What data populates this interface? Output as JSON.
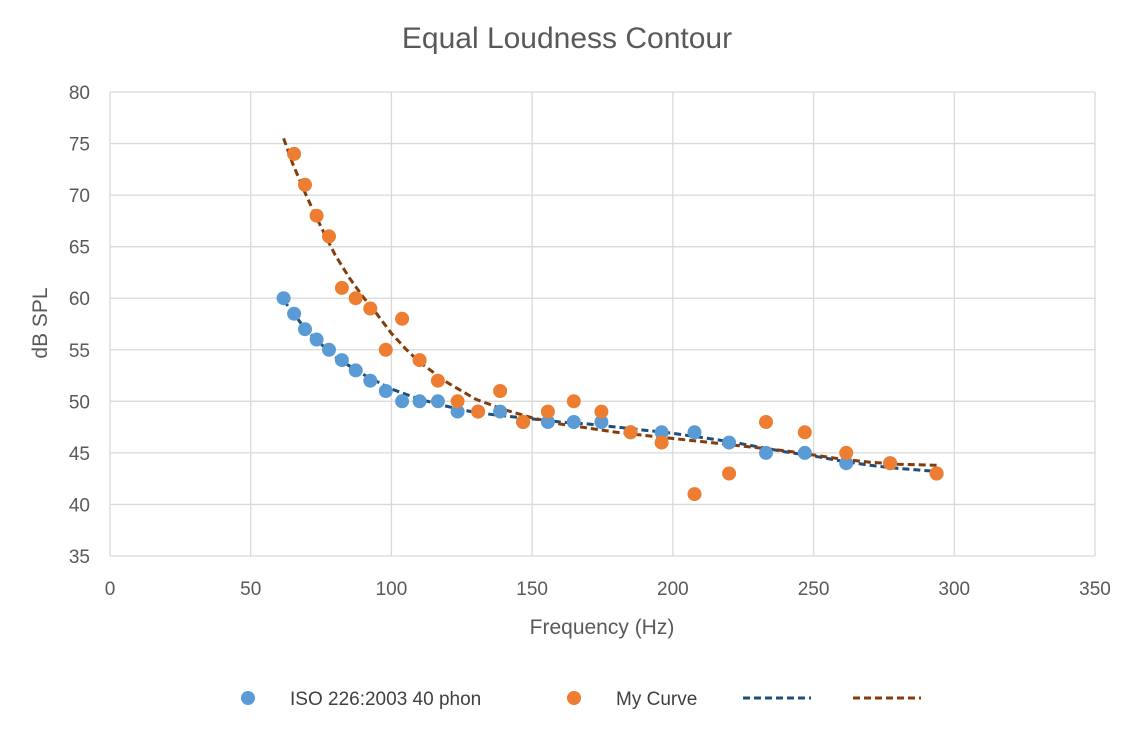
{
  "chart_data": {
    "type": "scatter",
    "title": "Equal Loudness Contour",
    "xlabel": "Frequency (Hz)",
    "ylabel": "dB SPL",
    "xlim": [
      0,
      350
    ],
    "ylim": [
      35,
      80
    ],
    "xticks": [
      0,
      50,
      100,
      150,
      200,
      250,
      300,
      350
    ],
    "yticks": [
      35,
      40,
      45,
      50,
      55,
      60,
      65,
      70,
      75,
      80
    ],
    "grid": true,
    "legend_position": "bottom",
    "series": [
      {
        "name": "ISO 226:2003 40 phon",
        "kind": "scatter",
        "color": "#5b9bd5",
        "x": [
          61.7,
          65.4,
          69.3,
          73.4,
          77.8,
          82.4,
          87.3,
          92.5,
          98.0,
          103.8,
          110.0,
          116.5,
          123.5,
          130.8,
          138.6,
          146.8,
          155.6,
          164.8,
          174.6,
          185.0,
          196.0,
          207.7,
          220.0,
          233.1,
          246.9,
          261.6,
          277.2,
          293.7
        ],
        "y": [
          60,
          58.5,
          57,
          56,
          55,
          54,
          53,
          52,
          51,
          50,
          50,
          50,
          49,
          49,
          49,
          48,
          48,
          48,
          48,
          47,
          47,
          47,
          46,
          45,
          45,
          44,
          44,
          43
        ]
      },
      {
        "name": "My Curve",
        "kind": "scatter",
        "color": "#ed7d31",
        "x": [
          65.4,
          69.3,
          73.4,
          77.8,
          82.4,
          87.3,
          92.5,
          98.0,
          103.8,
          110.0,
          116.5,
          123.5,
          130.8,
          138.6,
          146.8,
          155.6,
          164.8,
          174.6,
          185.0,
          196.0,
          207.7,
          220.0,
          233.1,
          246.9,
          261.6,
          277.2,
          293.7
        ],
        "y": [
          74,
          71,
          68,
          66,
          61,
          60,
          59,
          55,
          58,
          54,
          52,
          50,
          49,
          51,
          48,
          49,
          50,
          49,
          47,
          46,
          41,
          43,
          48,
          47,
          45,
          44,
          43
        ]
      },
      {
        "name": "",
        "kind": "trendline",
        "color": "#1f4e79",
        "x": [
          61.7,
          70,
          80,
          90,
          100,
          110,
          120,
          130,
          140,
          150,
          160,
          170,
          180,
          190,
          200,
          210,
          220,
          230,
          240,
          250,
          260,
          270,
          280,
          293.7
        ],
        "y": [
          59.8,
          56.8,
          54.3,
          52.6,
          51.2,
          50.2,
          49.5,
          48.9,
          48.6,
          48.3,
          48.0,
          47.8,
          47.5,
          47.2,
          46.9,
          46.5,
          46.1,
          45.6,
          45.1,
          44.7,
          44.2,
          43.8,
          43.5,
          43.2
        ]
      },
      {
        "name": "",
        "kind": "trendline",
        "color": "#843c0c",
        "x": [
          61.7,
          65,
          70,
          75,
          80,
          85,
          90,
          95,
          100,
          105,
          110,
          115,
          120,
          130,
          140,
          150,
          160,
          170,
          180,
          190,
          200,
          210,
          220,
          230,
          240,
          250,
          260,
          270,
          280,
          293.7
        ],
        "y": [
          75.5,
          73.0,
          69.8,
          66.9,
          64.2,
          62.0,
          60.1,
          58.4,
          56.6,
          55.1,
          53.8,
          52.8,
          51.8,
          50.2,
          49.2,
          48.4,
          47.8,
          47.4,
          47.0,
          46.7,
          46.4,
          46.1,
          45.8,
          45.5,
          45.2,
          44.8,
          44.4,
          44.1,
          43.9,
          43.8
        ]
      }
    ]
  }
}
